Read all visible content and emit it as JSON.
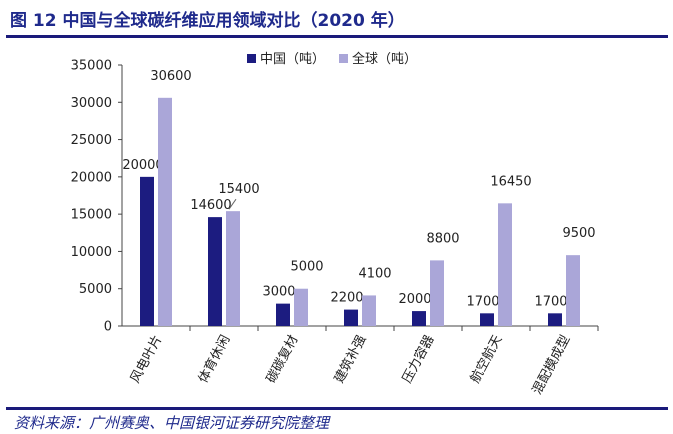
{
  "header": {
    "title": "图 12 中国与全球碳纤维应用领域对比（2020 年）"
  },
  "footer": {
    "source": "资料来源：广州赛奥、中国银河证券研究院整理"
  },
  "chart_data": {
    "type": "bar",
    "categories": [
      "风电叶片",
      "体育休闲",
      "碳碳复材",
      "建筑补强",
      "压力容器",
      "航空航天",
      "混配模成型"
    ],
    "series": [
      {
        "name": "中国（吨）",
        "values": [
          20000,
          14600,
          3000,
          2200,
          2000,
          1700,
          1700
        ],
        "color": "#1c1c80"
      },
      {
        "name": "全球（吨）",
        "values": [
          30600,
          15400,
          5000,
          4100,
          8800,
          16450,
          9500
        ],
        "color": "#aaa6d8"
      }
    ],
    "ylim": [
      0,
      35000
    ],
    "yticks": [
      0,
      5000,
      10000,
      15000,
      20000,
      25000,
      30000,
      35000
    ],
    "legend": "top-right",
    "grid": false
  }
}
